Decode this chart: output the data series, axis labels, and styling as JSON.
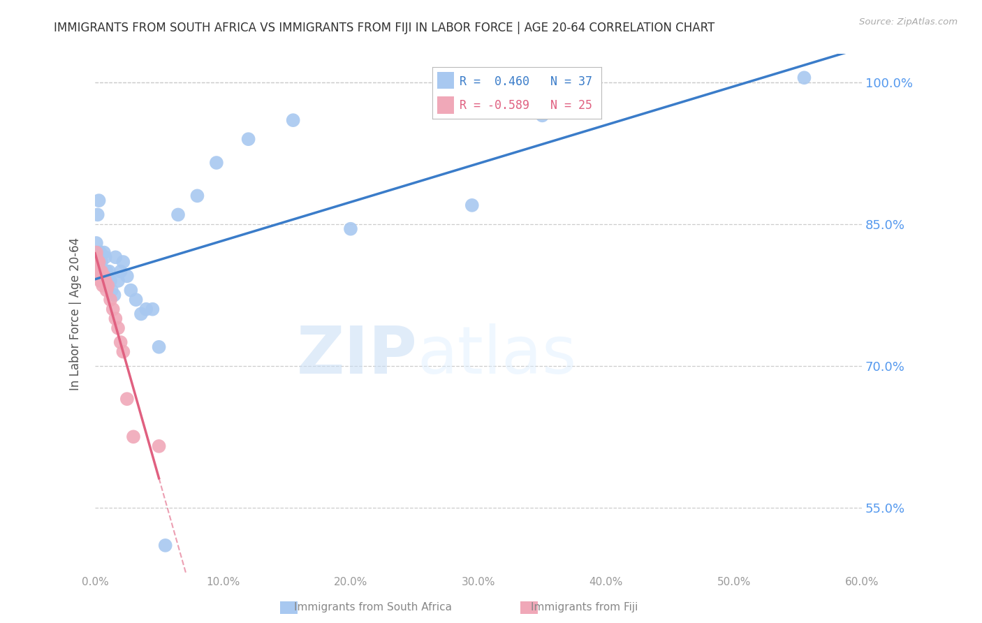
{
  "title": "IMMIGRANTS FROM SOUTH AFRICA VS IMMIGRANTS FROM FIJI IN LABOR FORCE | AGE 20-64 CORRELATION CHART",
  "source": "Source: ZipAtlas.com",
  "ylabel": "In Labor Force | Age 20-64",
  "xlim": [
    0.0,
    0.6
  ],
  "ylim": [
    0.48,
    1.03
  ],
  "xticks": [
    0.0,
    0.1,
    0.2,
    0.3,
    0.4,
    0.5,
    0.6
  ],
  "xticklabels": [
    "0.0%",
    "10.0%",
    "20.0%",
    "30.0%",
    "40.0%",
    "50.0%",
    "60.0%"
  ],
  "yticks": [
    0.55,
    0.7,
    0.85,
    1.0
  ],
  "yticklabels": [
    "55.0%",
    "70.0%",
    "85.0%",
    "100.0%"
  ],
  "blue_R": 0.46,
  "blue_N": 37,
  "pink_R": -0.589,
  "pink_N": 25,
  "blue_scatter_x": [
    0.001,
    0.002,
    0.003,
    0.004,
    0.004,
    0.005,
    0.005,
    0.006,
    0.007,
    0.008,
    0.009,
    0.01,
    0.011,
    0.012,
    0.013,
    0.015,
    0.016,
    0.018,
    0.02,
    0.022,
    0.025,
    0.028,
    0.032,
    0.036,
    0.04,
    0.045,
    0.05,
    0.055,
    0.065,
    0.08,
    0.095,
    0.12,
    0.155,
    0.2,
    0.295,
    0.35,
    0.555
  ],
  "blue_scatter_y": [
    0.83,
    0.86,
    0.875,
    0.82,
    0.81,
    0.81,
    0.8,
    0.8,
    0.82,
    0.815,
    0.8,
    0.79,
    0.8,
    0.79,
    0.78,
    0.775,
    0.815,
    0.79,
    0.8,
    0.81,
    0.795,
    0.78,
    0.77,
    0.755,
    0.76,
    0.76,
    0.72,
    0.51,
    0.86,
    0.88,
    0.915,
    0.94,
    0.96,
    0.845,
    0.87,
    0.965,
    1.005
  ],
  "pink_scatter_x": [
    0.001,
    0.001,
    0.002,
    0.002,
    0.003,
    0.003,
    0.004,
    0.004,
    0.005,
    0.005,
    0.006,
    0.006,
    0.007,
    0.008,
    0.009,
    0.01,
    0.012,
    0.014,
    0.016,
    0.018,
    0.02,
    0.022,
    0.025,
    0.03,
    0.05
  ],
  "pink_scatter_y": [
    0.82,
    0.815,
    0.81,
    0.8,
    0.81,
    0.8,
    0.8,
    0.79,
    0.8,
    0.79,
    0.795,
    0.785,
    0.795,
    0.79,
    0.78,
    0.785,
    0.77,
    0.76,
    0.75,
    0.74,
    0.725,
    0.715,
    0.665,
    0.625,
    0.615
  ],
  "blue_line_color": "#3a7cc9",
  "pink_line_color": "#e06080",
  "blue_dot_color": "#a8c8f0",
  "pink_dot_color": "#f0a8b8",
  "watermark_zip": "ZIP",
  "watermark_atlas": "atlas",
  "background_color": "#ffffff",
  "grid_color": "#cccccc",
  "right_label_color": "#5599ee",
  "title_color": "#333333",
  "axis_label_color": "#555555",
  "tick_label_color": "#999999"
}
